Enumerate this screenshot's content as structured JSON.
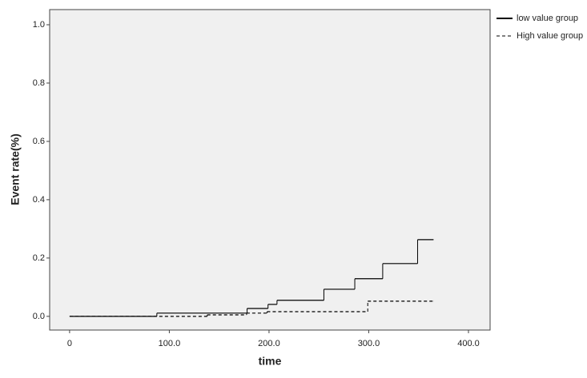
{
  "chart_data": {
    "type": "step",
    "x_label": "time",
    "y_label": "Event rate(%)",
    "xlim": [
      -20,
      421.7
    ],
    "ylim": [
      -0.047,
      1.052
    ],
    "xticks": [
      0,
      {
        "value": 100,
        "label": "100.0"
      },
      {
        "value": 200,
        "label": "200.0"
      },
      {
        "value": 300,
        "label": "300.0"
      },
      {
        "value": 400,
        "label": "400.0"
      }
    ],
    "yticks": [
      {
        "value": 0,
        "label": "0.0"
      },
      {
        "value": 0.2,
        "label": "0.2"
      },
      {
        "value": 0.4,
        "label": "0.4"
      },
      {
        "value": 0.6,
        "label": "0.6"
      },
      {
        "value": 0.8,
        "label": "0.8"
      },
      {
        "value": 1,
        "label": "1.0"
      }
    ],
    "background": "#f0f0f0",
    "series": [
      {
        "name": "low value group",
        "color": "#000000",
        "dash": false,
        "x": [
          0,
          87.5,
          178,
          199,
          208,
          255,
          286,
          314,
          349,
          365
        ],
        "values": [
          0,
          0.011,
          0.027,
          0.041,
          0.055,
          0.093,
          0.129,
          0.181,
          0.263,
          0.263
        ]
      },
      {
        "name": "High value group",
        "color": "#000000",
        "dash": true,
        "x": [
          0,
          138,
          177.5,
          198,
          299,
          365
        ],
        "values": [
          0,
          0.005,
          0.011,
          0.016,
          0.052,
          0.052
        ]
      }
    ]
  }
}
